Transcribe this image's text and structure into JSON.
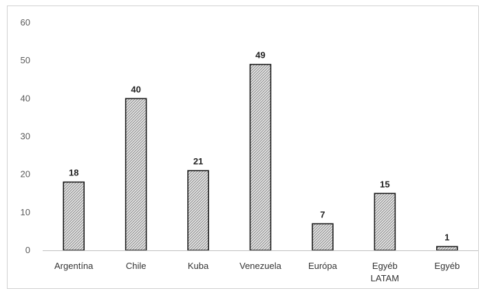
{
  "chart_data": {
    "type": "bar",
    "categories": [
      "Argentína",
      "Chile",
      "Kuba",
      "Venezuela",
      "Európa",
      "Egyéb LATAM",
      "Egyéb"
    ],
    "category_lines": [
      [
        "Argentína"
      ],
      [
        "Chile"
      ],
      [
        "Kuba"
      ],
      [
        "Venezuela"
      ],
      [
        "Európa"
      ],
      [
        "Egyéb",
        "LATAM"
      ],
      [
        "Egyéb"
      ]
    ],
    "values": [
      18,
      40,
      21,
      49,
      7,
      15,
      1
    ],
    "ylim": [
      0,
      60
    ],
    "yticks": [
      0,
      10,
      20,
      30,
      40,
      50,
      60
    ],
    "title": "",
    "xlabel": "",
    "ylabel": "",
    "grid": false,
    "legend": "none",
    "bar_pattern": "diagonal-hatch",
    "bar_fill_color": "#d9d9d9",
    "bar_stroke_color": "#1a1a1a",
    "axis_color": "#bfbfbf"
  }
}
